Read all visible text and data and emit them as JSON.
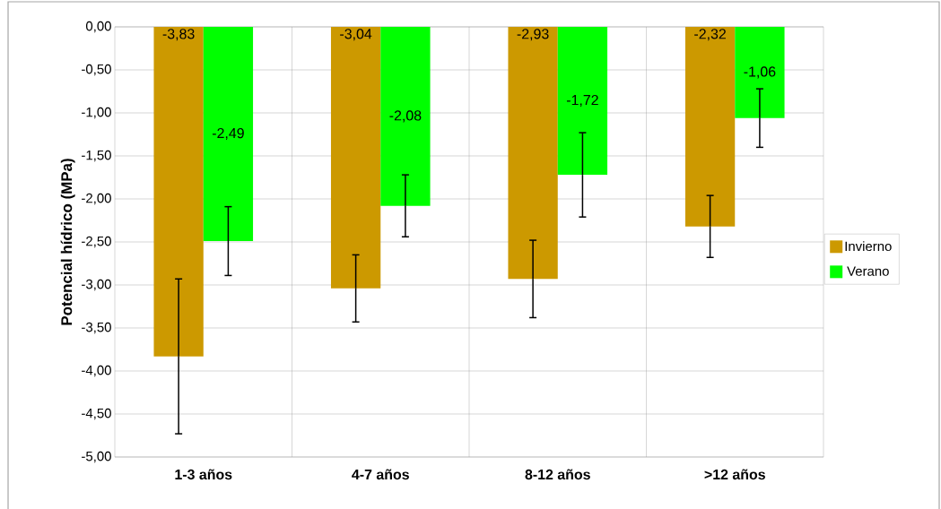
{
  "chart_data": {
    "type": "bar",
    "ylabel": "Potencial hídrico (MPa)",
    "categories": [
      "1-3 años",
      "4-7 años",
      "8-12 años",
      ">12 años"
    ],
    "series": [
      {
        "name": "Invierno",
        "color": "#cc9900",
        "values": [
          -3.83,
          -3.04,
          -2.93,
          -2.32
        ],
        "errors": [
          0.9,
          0.39,
          0.45,
          0.36
        ],
        "value_labels": [
          "-3,83",
          "-3,04",
          "-2,93",
          "-2,32"
        ]
      },
      {
        "name": "Verano",
        "color": "#00ff00",
        "values": [
          -2.49,
          -2.08,
          -1.72,
          -1.06
        ],
        "errors": [
          0.4,
          0.36,
          0.49,
          0.34
        ],
        "value_labels": [
          "-2,49",
          "-2,08",
          "-1,72",
          "-1,06"
        ]
      }
    ],
    "ylim": [
      -5,
      0
    ],
    "yticks": [
      {
        "value": 0,
        "label": "0,00"
      },
      {
        "value": -0.5,
        "label": "-0,50"
      },
      {
        "value": -1,
        "label": "-1,00"
      },
      {
        "value": -1.5,
        "label": "-1,50"
      },
      {
        "value": -2,
        "label": "-2,00"
      },
      {
        "value": -2.5,
        "label": "-2,50"
      },
      {
        "value": -3,
        "label": "-3,00"
      },
      {
        "value": -3.5,
        "label": "-3,50"
      },
      {
        "value": -4,
        "label": "-4,00"
      },
      {
        "value": -4.5,
        "label": "-4,50"
      },
      {
        "value": -5,
        "label": "-5,00"
      }
    ],
    "grid": true,
    "legend": "right"
  }
}
